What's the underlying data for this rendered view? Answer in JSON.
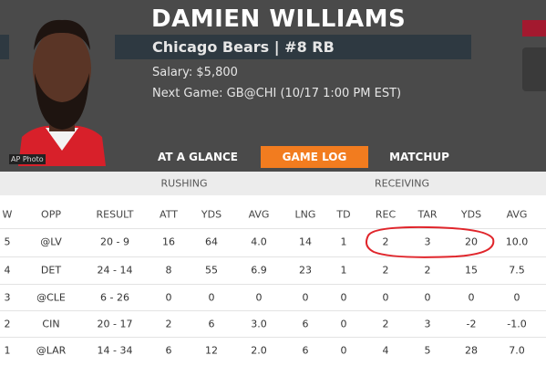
{
  "header": {
    "name": "DAMIEN WILLIAMS",
    "team": "Chicago Bears | #8 RB",
    "salary": "Salary: $5,800",
    "next_game": "Next Game: GB@CHI (10/17 1:00 PM EST)",
    "photo_credit": "AP Photo"
  },
  "tabs": [
    "AT A GLANCE",
    "GAME LOG",
    "MATCHUP"
  ],
  "table": {
    "groups": [
      "RUSHING",
      "RECEIVING"
    ],
    "columns": [
      "W",
      "OPP",
      "RESULT",
      "ATT",
      "YDS",
      "AVG",
      "LNG",
      "TD",
      "REC",
      "TAR",
      "YDS",
      "AVG"
    ],
    "rows": [
      [
        "5",
        "@LV",
        "20 - 9",
        "16",
        "64",
        "4.0",
        "14",
        "1",
        "2",
        "3",
        "20",
        "10.0"
      ],
      [
        "4",
        "DET",
        "24 - 14",
        "8",
        "55",
        "6.9",
        "23",
        "1",
        "2",
        "2",
        "15",
        "7.5"
      ],
      [
        "3",
        "@CLE",
        "6 - 26",
        "0",
        "0",
        "0",
        "0",
        "0",
        "0",
        "0",
        "0",
        "0"
      ],
      [
        "2",
        "CIN",
        "20 - 17",
        "2",
        "6",
        "3.0",
        "6",
        "0",
        "2",
        "3",
        "-2",
        "-1.0"
      ],
      [
        "1",
        "@LAR",
        "14 - 34",
        "6",
        "12",
        "2.0",
        "6",
        "0",
        "4",
        "5",
        "28",
        "7.0"
      ]
    ]
  }
}
